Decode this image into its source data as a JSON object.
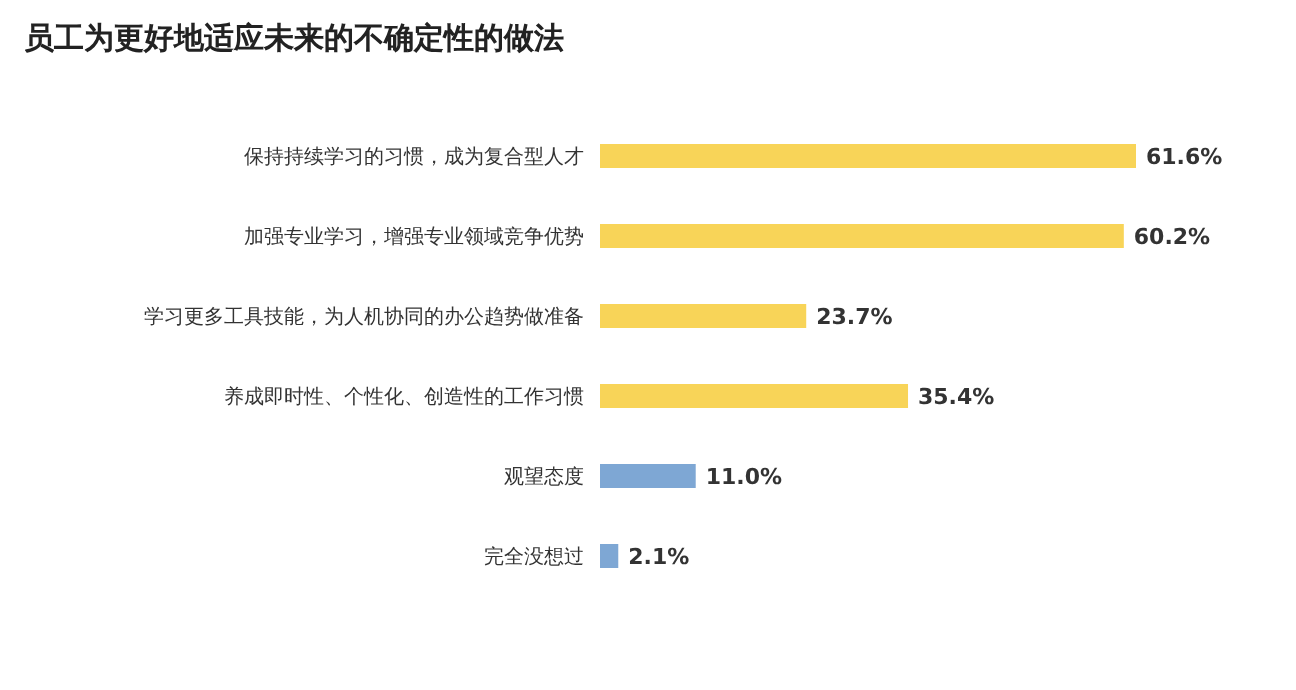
{
  "chart_data": {
    "type": "bar",
    "orientation": "horizontal",
    "title": "员工为更好地适应未来的不确定性的做法",
    "categories": [
      "保持持续学习的习惯，成为复合型人才",
      "加强专业学习，增强专业领域竞争优势",
      "学习更多工具技能，为人机协同的办公趋势做准备",
      "养成即时性、个性化、创造性的工作习惯",
      "观望态度",
      "完全没想过"
    ],
    "values": [
      61.6,
      60.2,
      23.7,
      35.4,
      11.0,
      2.1
    ],
    "value_labels": [
      "61.6%",
      "60.2%",
      "23.7%",
      "35.4%",
      "11.0%",
      "2.1%"
    ],
    "colors": [
      "#f8d458",
      "#f8d458",
      "#f8d458",
      "#f8d458",
      "#7ea7d4",
      "#7ea7d4"
    ]
  }
}
